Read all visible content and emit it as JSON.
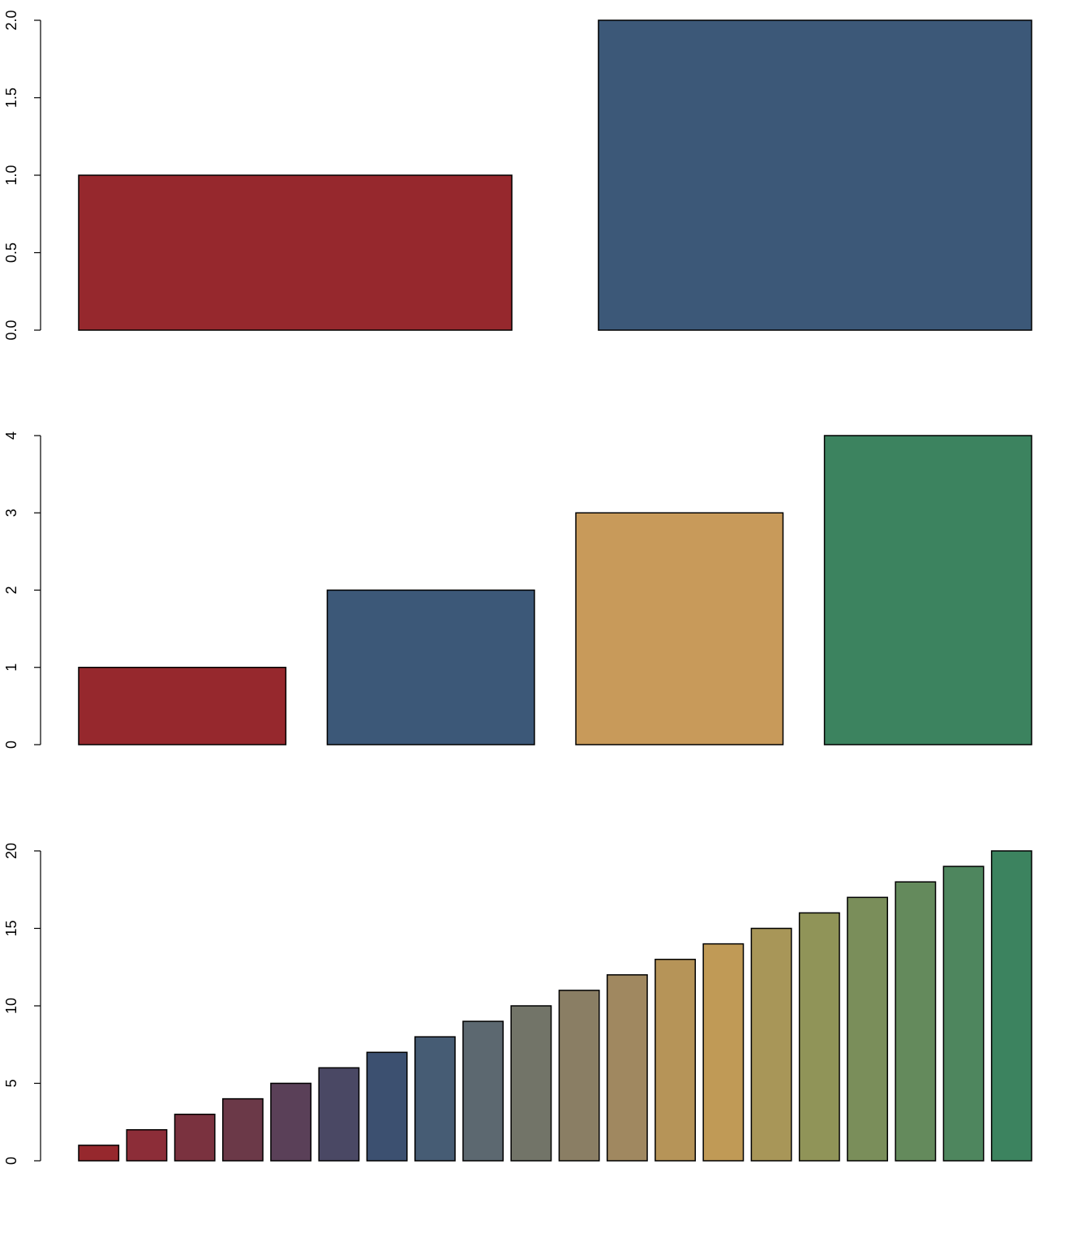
{
  "chart_data": [
    {
      "type": "bar",
      "values": [
        1,
        2
      ],
      "colors": [
        "#96282D",
        "#3C5878"
      ],
      "ylim": [
        0,
        2
      ],
      "yticks": [
        0,
        0.5,
        1,
        1.5,
        2
      ],
      "ytick_labels": [
        "0.0",
        "0.5",
        "1.0",
        "1.5",
        "2.0"
      ],
      "grid": false,
      "title": "",
      "xlabel": "",
      "ylabel": ""
    },
    {
      "type": "bar",
      "values": [
        1,
        2,
        3,
        4
      ],
      "colors": [
        "#96282D",
        "#3C5878",
        "#C89A5A",
        "#3C835F"
      ],
      "ylim": [
        0,
        4
      ],
      "yticks": [
        0,
        1,
        2,
        3,
        4
      ],
      "ytick_labels": [
        "0",
        "1",
        "2",
        "3",
        "4"
      ],
      "grid": false,
      "title": "",
      "xlabel": "",
      "ylabel": ""
    },
    {
      "type": "bar",
      "values": [
        1,
        2,
        3,
        4,
        5,
        6,
        7,
        8,
        9,
        10,
        11,
        12,
        13,
        14,
        15,
        16,
        17,
        18,
        19,
        20
      ],
      "colors": [
        "#96282D",
        "#8C2D38",
        "#7A323F",
        "#6B3948",
        "#5A4058",
        "#4A4864",
        "#3C5070",
        "#465C74",
        "#5C6870",
        "#727468",
        "#8A7E64",
        "#A08860",
        "#B69458",
        "#C09A56",
        "#A89658",
        "#909458",
        "#7A8E5A",
        "#648A5C",
        "#4E865E",
        "#3C835F"
      ],
      "ylim": [
        0,
        20
      ],
      "yticks": [
        0,
        5,
        10,
        15,
        20
      ],
      "ytick_labels": [
        "0",
        "5",
        "10",
        "15",
        "20"
      ],
      "grid": false,
      "title": "",
      "xlabel": "",
      "ylabel": ""
    }
  ]
}
